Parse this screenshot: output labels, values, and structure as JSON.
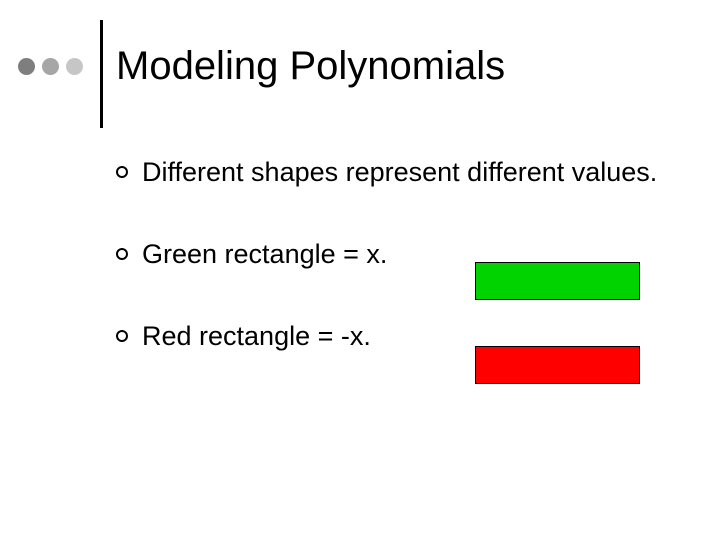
{
  "decor": {
    "dot_colors": [
      "#7e7e7e",
      "#a6a6a6",
      "#c6c6c6"
    ],
    "vline_color": "#000000"
  },
  "title": "Modeling Polynomials",
  "bullets": [
    {
      "text": "Different shapes represent different values."
    },
    {
      "text": "Green rectangle  = x."
    },
    {
      "text": "Red rectangle = -x."
    }
  ],
  "shapes": {
    "green": {
      "fill": "#00d300",
      "border": "#000000"
    },
    "red": {
      "fill": "#ff0000",
      "border": "#000000"
    }
  },
  "typography": {
    "title_fontsize": 40,
    "body_fontsize": 27,
    "font_family": "Arial"
  },
  "background_color": "#ffffff"
}
